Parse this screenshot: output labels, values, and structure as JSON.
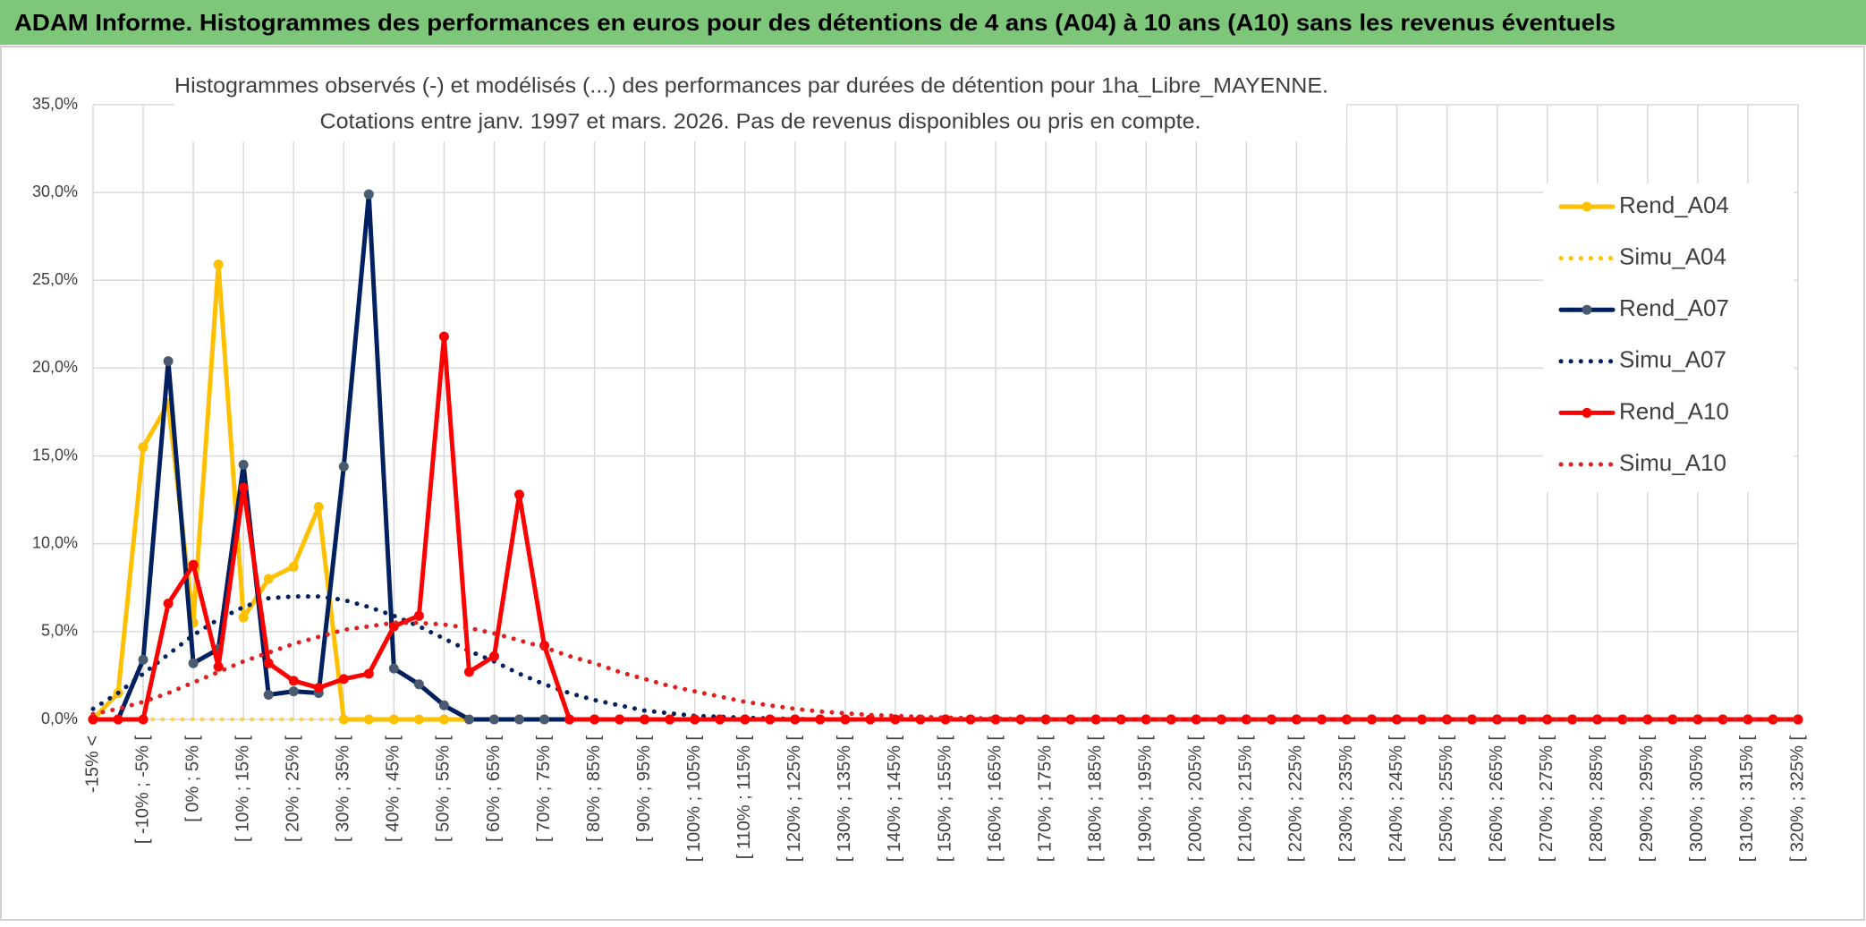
{
  "header": {
    "title": "ADAM Informe. Histogrammes des performances en euros pour des détentions de 4 ans (A04) à 10 ans (A10) sans les revenus éventuels"
  },
  "chart_data": {
    "type": "line",
    "title": "Histogrammes observés (-) et modélisés (...) des performances par durées de détention pour 1ha_Libre_MAYENNE.",
    "subtitle": "Cotations entre janv. 1997 et mars. 2026. Pas de revenus disponibles ou pris en compte.",
    "categories": [
      "-15% <",
      null,
      "[ -10% ; -5% [",
      null,
      "[ 0% ; 5% [",
      null,
      "[ 10% ; 15% [",
      null,
      "[ 20% ; 25% [",
      null,
      "[ 30% ; 35% [",
      null,
      "[ 40% ; 45% [",
      null,
      "[ 50% ; 55% [",
      null,
      "[ 60% ; 65% [",
      null,
      "[ 70% ; 75% [",
      null,
      "[ 80% ; 85% [",
      null,
      "[ 90% ; 95% [",
      null,
      "[ 100% ; 105% [",
      null,
      "[ 110% ; 115% [",
      null,
      "[ 120% ; 125% [",
      null,
      "[ 130% ; 135% [",
      null,
      "[ 140% ; 145% [",
      null,
      "[ 150% ; 155% [",
      null,
      "[ 160% ; 165% [",
      null,
      "[ 170% ; 175% [",
      null,
      "[ 180% ; 185% [",
      null,
      "[ 190% ; 195% [",
      null,
      "[ 200% ; 205% [",
      null,
      "[ 210% ; 215% [",
      null,
      "[ 220% ; 225% [",
      null,
      "[ 230% ; 235% [",
      null,
      "[ 240% ; 245% [",
      null,
      "[ 250% ; 255% [",
      null,
      "[ 260% ; 265% [",
      null,
      "[ 270% ; 275% [",
      null,
      "[ 280% ; 285% [",
      null,
      "[ 290% ; 295% [",
      null,
      "[ 300% ; 305% [",
      null,
      "[ 310% ; 315% [",
      null,
      "[ 320% ; 325% ["
    ],
    "series": [
      {
        "name": "Rend_A04",
        "color": "#FFC000",
        "style": "solid",
        "markers": true,
        "values": [
          0,
          1.5,
          15.5,
          18,
          5.5,
          25.9,
          5.8,
          8,
          8.7,
          12.1,
          0,
          0,
          0,
          0,
          0,
          0,
          0,
          0,
          0,
          0,
          0,
          0,
          0,
          0,
          0,
          0,
          0,
          0,
          0,
          0,
          0,
          0,
          0,
          0,
          0,
          0,
          0,
          0,
          0,
          0,
          0,
          0,
          0,
          0,
          0,
          0,
          0,
          0,
          0,
          0,
          0,
          0,
          0,
          0,
          0,
          0,
          0,
          0,
          0,
          0,
          0,
          0,
          0,
          0,
          0,
          0,
          0,
          0,
          0
        ]
      },
      {
        "name": "Simu_A04",
        "color": "#FFC000",
        "style": "dotted",
        "markers": false,
        "values": [
          0,
          0,
          0,
          0,
          0,
          0,
          0,
          0,
          0,
          0,
          0,
          0,
          0,
          0,
          0,
          0,
          0,
          0,
          0,
          0,
          0,
          0,
          0,
          0,
          0,
          0,
          0,
          0,
          0,
          0,
          0,
          0,
          0,
          0,
          0,
          0,
          0,
          0,
          0,
          0,
          0,
          0,
          0,
          0,
          0,
          0,
          0,
          0,
          0,
          0,
          0,
          0,
          0,
          0,
          0,
          0,
          0,
          0,
          0,
          0,
          0,
          0,
          0,
          0,
          0,
          0,
          0,
          0,
          0
        ]
      },
      {
        "name": "Rend_A07",
        "color": "#002060",
        "marker_color": "#4a5a70",
        "style": "solid",
        "markers": true,
        "values": [
          0,
          0,
          3.4,
          20.4,
          3.2,
          4,
          14.5,
          1.4,
          1.6,
          1.5,
          14.4,
          29.9,
          2.9,
          2,
          0.8,
          0,
          0,
          0,
          0,
          0,
          0,
          0,
          0,
          0,
          0,
          0,
          0,
          0,
          0,
          0,
          0,
          0,
          0,
          0,
          0,
          0,
          0,
          0,
          0,
          0,
          0,
          0,
          0,
          0,
          0,
          0,
          0,
          0,
          0,
          0,
          0,
          0,
          0,
          0,
          0,
          0,
          0,
          0,
          0,
          0,
          0,
          0,
          0,
          0,
          0,
          0,
          0,
          0,
          0
        ]
      },
      {
        "name": "Simu_A07",
        "color": "#002060",
        "style": "dotted",
        "markers": false,
        "values": [
          0.6,
          1.5,
          2.6,
          3.7,
          4.8,
          5.7,
          6.4,
          6.9,
          7,
          7,
          6.8,
          6.4,
          5.9,
          5.3,
          4.6,
          3.9,
          3.3,
          2.6,
          2,
          1.5,
          1.1,
          0.8,
          0.5,
          0.35,
          0.2,
          0.15,
          0.1,
          0.05,
          0.03,
          0,
          0,
          0,
          0,
          0,
          0,
          0,
          0,
          0,
          0,
          0,
          0,
          0,
          0,
          0,
          0,
          0,
          0,
          0,
          0,
          0,
          0,
          0,
          0,
          0,
          0,
          0,
          0,
          0,
          0,
          0,
          0,
          0,
          0,
          0,
          0,
          0,
          0,
          0,
          0
        ]
      },
      {
        "name": "Rend_A10",
        "color": "#FF0000",
        "style": "solid",
        "markers": true,
        "values": [
          0,
          0,
          0,
          6.6,
          8.8,
          3,
          13.2,
          3.2,
          2.2,
          1.8,
          2.3,
          2.6,
          5.3,
          5.9,
          21.8,
          2.7,
          3.6,
          12.8,
          4.2,
          0,
          0,
          0,
          0,
          0,
          0,
          0,
          0,
          0,
          0,
          0,
          0,
          0,
          0,
          0,
          0,
          0,
          0,
          0,
          0,
          0,
          0,
          0,
          0,
          0,
          0,
          0,
          0,
          0,
          0,
          0,
          0,
          0,
          0,
          0,
          0,
          0,
          0,
          0,
          0,
          0,
          0,
          0,
          0,
          0,
          0,
          0,
          0,
          0,
          0
        ]
      },
      {
        "name": "Simu_A10",
        "color": "#E02020",
        "style": "dotted",
        "markers": false,
        "values": [
          0.3,
          0.6,
          1,
          1.5,
          2.1,
          2.7,
          3.3,
          3.8,
          4.3,
          4.7,
          5.1,
          5.3,
          5.5,
          5.5,
          5.4,
          5.2,
          4.9,
          4.5,
          4.1,
          3.6,
          3.2,
          2.7,
          2.3,
          1.9,
          1.6,
          1.3,
          1,
          0.8,
          0.6,
          0.45,
          0.35,
          0.25,
          0.2,
          0.15,
          0.1,
          0.07,
          0.05,
          0.03,
          0.02,
          0,
          0,
          0,
          0,
          0,
          0,
          0,
          0,
          0,
          0,
          0,
          0,
          0,
          0,
          0,
          0,
          0,
          0,
          0,
          0,
          0,
          0,
          0,
          0,
          0,
          0,
          0,
          0,
          0,
          0
        ]
      }
    ],
    "ylim": [
      0,
      35
    ],
    "yticks": [
      {
        "value": 0,
        "label": "0,0%"
      },
      {
        "value": 5,
        "label": "5,0%"
      },
      {
        "value": 10,
        "label": "10,0%"
      },
      {
        "value": 15,
        "label": "15,0%"
      },
      {
        "value": 20,
        "label": "20,0%"
      },
      {
        "value": 25,
        "label": "25,0%"
      },
      {
        "value": 30,
        "label": "30,0%"
      },
      {
        "value": 35,
        "label": "35,0%"
      }
    ],
    "grid": true,
    "legend": "right"
  }
}
